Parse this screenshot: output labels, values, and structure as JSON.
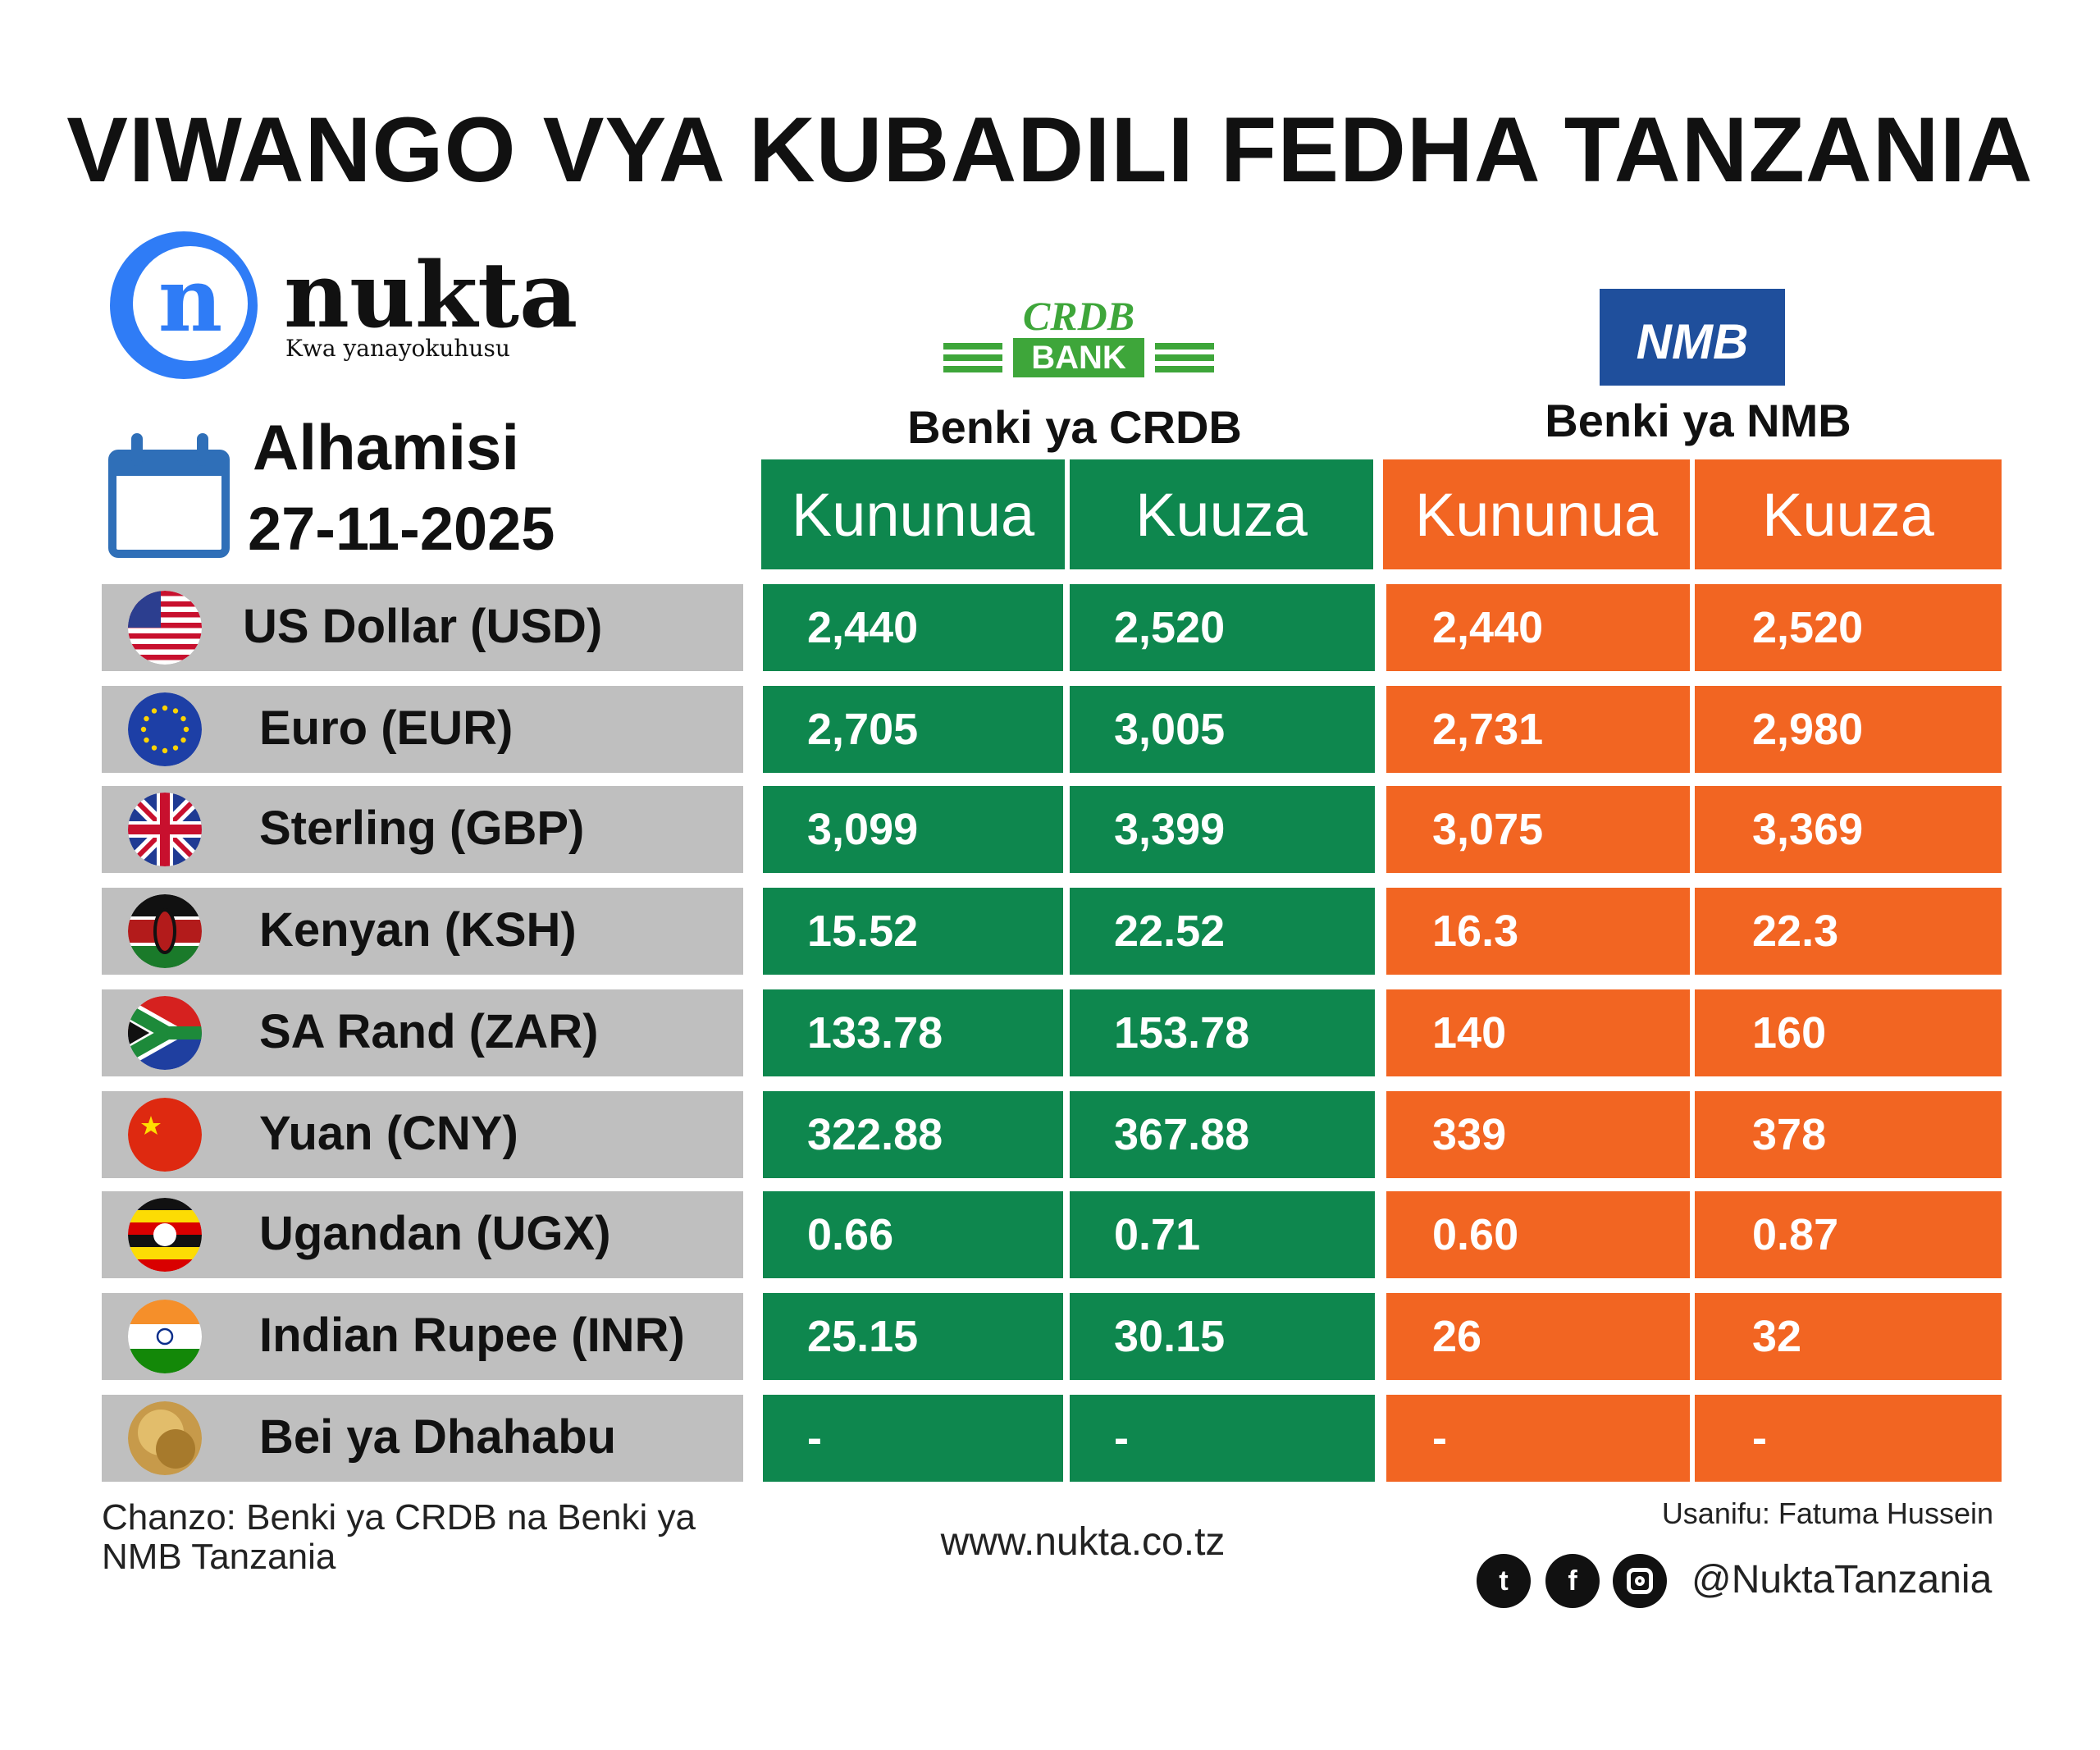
{
  "title": "VIWANGO VYA KUBADILI FEDHA TANZANIA",
  "brand": {
    "name": "nukta",
    "letter": "n",
    "tagline": "Kwa yanayokuhusu",
    "color": "#2f7cf6"
  },
  "date": {
    "day": "Alhamisi",
    "date": "27-11-2025"
  },
  "banks": {
    "crdb": {
      "logo_top": "CRDB",
      "logo_bottom": "BANK",
      "name": "Benki ya CRDB",
      "color": "#0e874e"
    },
    "nmb": {
      "logo": "NMB",
      "name": "Benki ya NMB",
      "color": "#f26522"
    }
  },
  "headers": {
    "buy": "Kununua",
    "sell": "Kuuza"
  },
  "rows": [
    {
      "currency": "US Dollar (USD)",
      "flag": "us-flag-icon",
      "crdb_buy": "2,440",
      "crdb_sell": "2,520",
      "nmb_buy": "2,440",
      "nmb_sell": "2,520"
    },
    {
      "currency": "Euro (EUR)",
      "flag": "eu-flag-icon",
      "crdb_buy": "2,705",
      "crdb_sell": "3,005",
      "nmb_buy": "2,731",
      "nmb_sell": "2,980"
    },
    {
      "currency": "Sterling (GBP)",
      "flag": "uk-flag-icon",
      "crdb_buy": "3,099",
      "crdb_sell": "3,399",
      "nmb_buy": "3,075",
      "nmb_sell": "3,369"
    },
    {
      "currency": "Kenyan (KSH)",
      "flag": "kenya-flag-icon",
      "crdb_buy": "15.52",
      "crdb_sell": "22.52",
      "nmb_buy": "16.3",
      "nmb_sell": "22.3"
    },
    {
      "currency": "SA Rand (ZAR)",
      "flag": "south-africa-flag-icon",
      "crdb_buy": "133.78",
      "crdb_sell": "153.78",
      "nmb_buy": "140",
      "nmb_sell": "160"
    },
    {
      "currency": "Yuan (CNY)",
      "flag": "china-flag-icon",
      "crdb_buy": "322.88",
      "crdb_sell": "367.88",
      "nmb_buy": "339",
      "nmb_sell": "378"
    },
    {
      "currency": "Ugandan (UGX)",
      "flag": "uganda-flag-icon",
      "crdb_buy": "0.66",
      "crdb_sell": "0.71",
      "nmb_buy": "0.60",
      "nmb_sell": "0.87"
    },
    {
      "currency": "Indian Rupee (INR)",
      "flag": "india-flag-icon",
      "crdb_buy": "25.15",
      "crdb_sell": "30.15",
      "nmb_buy": "26",
      "nmb_sell": "32"
    },
    {
      "currency": "Bei ya Dhahabu",
      "flag": "gold-icon",
      "crdb_buy": "-",
      "crdb_sell": "-",
      "nmb_buy": "-",
      "nmb_sell": "-"
    }
  ],
  "footer": {
    "source": "Chanzo: Benki ya CRDB na Benki ya NMB Tanzania",
    "website": "www.nukta.co.tz",
    "designer": "Usanifu: Fatuma Hussein",
    "handle": "@NuktaTanzania"
  }
}
